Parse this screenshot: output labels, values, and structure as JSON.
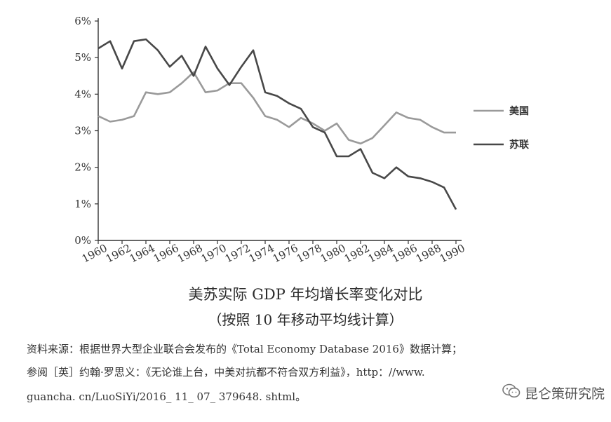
{
  "chart_data": {
    "type": "line",
    "x": [
      1960,
      1961,
      1962,
      1963,
      1964,
      1965,
      1966,
      1967,
      1968,
      1969,
      1970,
      1971,
      1972,
      1973,
      1974,
      1975,
      1976,
      1977,
      1978,
      1979,
      1980,
      1981,
      1982,
      1983,
      1984,
      1985,
      1986,
      1987,
      1988,
      1989,
      1990
    ],
    "xticks": [
      1960,
      1962,
      1964,
      1966,
      1968,
      1970,
      1972,
      1974,
      1976,
      1978,
      1980,
      1982,
      1984,
      1986,
      1988,
      1990
    ],
    "yticks": [
      0,
      1,
      2,
      3,
      4,
      5,
      6
    ],
    "ytick_labels": [
      "0%",
      "1%",
      "2%",
      "3%",
      "4%",
      "5%",
      "6%"
    ],
    "ylim": [
      0,
      6
    ],
    "series": [
      {
        "name": "美国",
        "color": "#9a9a9a",
        "values": [
          3.4,
          3.25,
          3.3,
          3.4,
          4.05,
          4.0,
          4.05,
          4.3,
          4.6,
          4.05,
          4.1,
          4.3,
          4.3,
          3.9,
          3.4,
          3.3,
          3.1,
          3.35,
          3.2,
          3.0,
          3.2,
          2.75,
          2.65,
          2.8,
          3.15,
          3.5,
          3.35,
          3.3,
          3.1,
          2.95,
          2.95
        ]
      },
      {
        "name": "苏联",
        "color": "#484848",
        "values": [
          5.25,
          5.45,
          4.7,
          5.45,
          5.5,
          5.2,
          4.75,
          5.05,
          4.5,
          5.3,
          4.7,
          4.25,
          4.75,
          5.2,
          4.05,
          3.95,
          3.75,
          3.6,
          3.1,
          2.95,
          2.3,
          2.3,
          2.5,
          1.85,
          1.7,
          2.0,
          1.75,
          1.7,
          1.6,
          1.45,
          0.85
        ]
      }
    ],
    "title": "美苏实际 GDP 年均增长率变化对比",
    "subtitle": "（按照 10 年移动平均线计算）",
    "legend_position": "right"
  },
  "source_lines": [
    "资料来源：根据世界大型企业联合会发布的《Total Economy Database 2016》数据计算；",
    "参阅［英］约翰·罗思义：《无论谁上台，中美对抗都不符合双方利益》，http：//www.",
    "guancha. cn/LuoSiYi/2016_ 11_ 07_ 379648. shtml。"
  ],
  "watermark": {
    "text": "昆仑策研究院",
    "icon": "wechat-icon"
  }
}
